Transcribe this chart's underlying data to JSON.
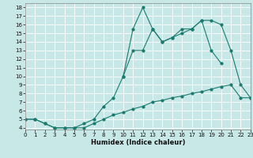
{
  "xlabel": "Humidex (Indice chaleur)",
  "line1_x": [
    0,
    1,
    2,
    3,
    4,
    5,
    6,
    7,
    8,
    9,
    10,
    11,
    12,
    13,
    14,
    15,
    16,
    17,
    18,
    19,
    20,
    21,
    22,
    23
  ],
  "line1_y": [
    5,
    5,
    4.5,
    4,
    4,
    4,
    4,
    4.5,
    5,
    5.5,
    5.8,
    6.2,
    6.5,
    7,
    7.2,
    7.5,
    7.7,
    8,
    8.2,
    8.5,
    8.8,
    9,
    7.5,
    7.5
  ],
  "line2_x": [
    0,
    1,
    2,
    3,
    4,
    5,
    6,
    7,
    8,
    9,
    10,
    11,
    12,
    13,
    14,
    15,
    16,
    17,
    18,
    19,
    20
  ],
  "line2_y": [
    5,
    5,
    4.5,
    4,
    4,
    4,
    4.5,
    5,
    6.5,
    7.5,
    10,
    13,
    13,
    15.5,
    14,
    14.5,
    15.5,
    15.5,
    16.5,
    13,
    11.5
  ],
  "line3_x": [
    10,
    11,
    12,
    13,
    14,
    15,
    16,
    17,
    18,
    19,
    20,
    21,
    22,
    23
  ],
  "line3_y": [
    10,
    15.5,
    18,
    15.5,
    14,
    14.5,
    15,
    15.5,
    16.5,
    16.5,
    16,
    13,
    9,
    7.5
  ],
  "line_color": "#1a7a6e",
  "bg_color": "#c8e8e8",
  "grid_color": "#ffffff",
  "xlim": [
    0,
    23
  ],
  "ylim": [
    3.8,
    18.5
  ],
  "yticks": [
    4,
    5,
    6,
    7,
    8,
    9,
    10,
    11,
    12,
    13,
    14,
    15,
    16,
    17,
    18
  ],
  "xticks": [
    0,
    1,
    2,
    3,
    4,
    5,
    6,
    7,
    8,
    9,
    10,
    11,
    12,
    13,
    14,
    15,
    16,
    17,
    18,
    19,
    20,
    21,
    22,
    23
  ]
}
